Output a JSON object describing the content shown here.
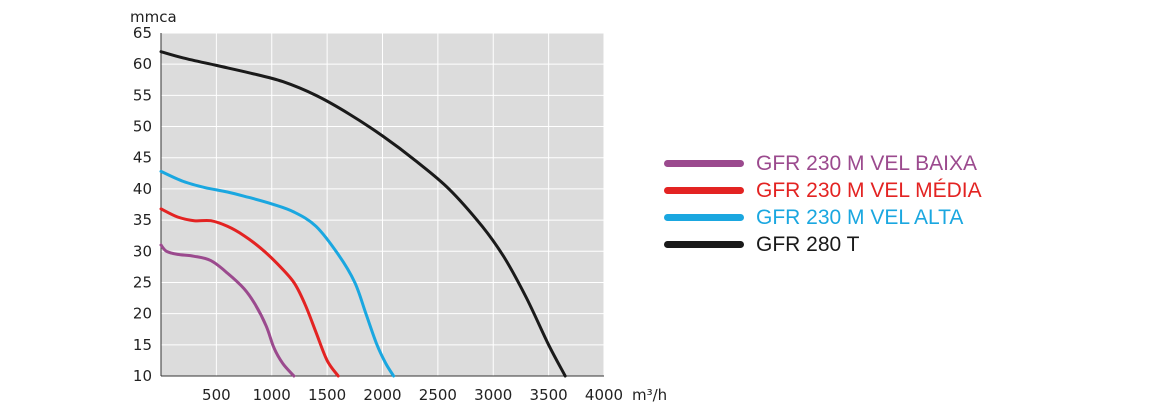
{
  "chart_data": {
    "type": "line",
    "ylabel": "mmca",
    "xunit": "m³/h",
    "xlim": [
      0,
      4000
    ],
    "ylim": [
      10,
      65
    ],
    "xticks": [
      500,
      1000,
      1500,
      2000,
      2500,
      3000,
      3500,
      4000
    ],
    "yticks": [
      10,
      15,
      20,
      25,
      30,
      35,
      40,
      45,
      50,
      55,
      60,
      65
    ],
    "grid": true,
    "legend_position": "right",
    "series": [
      {
        "name": "GFR 230 M VEL BAIXA",
        "color": "#9b4a8e",
        "points": [
          [
            0,
            31
          ],
          [
            50,
            30
          ],
          [
            150,
            29.5
          ],
          [
            300,
            29.2
          ],
          [
            450,
            28.5
          ],
          [
            600,
            26.5
          ],
          [
            750,
            24
          ],
          [
            850,
            21.5
          ],
          [
            950,
            18
          ],
          [
            1020,
            14.5
          ],
          [
            1100,
            12
          ],
          [
            1200,
            10
          ]
        ]
      },
      {
        "name": "GFR 230 M VEL MÉDIA",
        "color": "#e32322",
        "points": [
          [
            0,
            36.8
          ],
          [
            150,
            35.5
          ],
          [
            300,
            34.9
          ],
          [
            450,
            34.9
          ],
          [
            600,
            34
          ],
          [
            750,
            32.5
          ],
          [
            900,
            30.5
          ],
          [
            1050,
            28
          ],
          [
            1200,
            25
          ],
          [
            1300,
            21.5
          ],
          [
            1400,
            17
          ],
          [
            1500,
            12.5
          ],
          [
            1600,
            10
          ]
        ]
      },
      {
        "name": "GFR 230 M VEL ALTA",
        "color": "#1aa7e0",
        "points": [
          [
            0,
            42.8
          ],
          [
            200,
            41.2
          ],
          [
            400,
            40.2
          ],
          [
            600,
            39.5
          ],
          [
            800,
            38.6
          ],
          [
            1000,
            37.6
          ],
          [
            1200,
            36.3
          ],
          [
            1400,
            34
          ],
          [
            1600,
            29.5
          ],
          [
            1750,
            25
          ],
          [
            1850,
            20
          ],
          [
            1950,
            15
          ],
          [
            2030,
            12
          ],
          [
            2100,
            10
          ]
        ]
      },
      {
        "name": "GFR 280 T",
        "color": "#1a1a1a",
        "points": [
          [
            0,
            62
          ],
          [
            200,
            61
          ],
          [
            500,
            59.8
          ],
          [
            800,
            58.6
          ],
          [
            1100,
            57.2
          ],
          [
            1400,
            55
          ],
          [
            1700,
            52
          ],
          [
            2000,
            48.5
          ],
          [
            2300,
            44.5
          ],
          [
            2600,
            40
          ],
          [
            2900,
            34
          ],
          [
            3100,
            29
          ],
          [
            3300,
            22.5
          ],
          [
            3500,
            15
          ],
          [
            3650,
            10
          ]
        ]
      }
    ]
  }
}
